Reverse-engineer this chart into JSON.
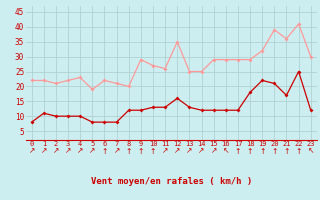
{
  "hours": [
    0,
    1,
    2,
    3,
    4,
    5,
    6,
    7,
    8,
    9,
    10,
    11,
    12,
    13,
    14,
    15,
    16,
    17,
    18,
    19,
    20,
    21,
    22,
    23
  ],
  "rafales": [
    22,
    22,
    21,
    22,
    23,
    19,
    22,
    21,
    20,
    29,
    27,
    26,
    35,
    25,
    25,
    29,
    29,
    29,
    29,
    32,
    39,
    36,
    41,
    30
  ],
  "moyen": [
    8,
    11,
    10,
    10,
    10,
    8,
    8,
    8,
    12,
    12,
    13,
    13,
    16,
    13,
    12,
    12,
    12,
    12,
    18,
    22,
    21,
    17,
    25,
    12
  ],
  "bg_color": "#cceef0",
  "line_color_rafales": "#ff9999",
  "line_color_moyen": "#cc0000",
  "grid_color": "#aacccc",
  "axis_label_color": "#cc0000",
  "tick_color": "#cc0000",
  "xlabel": "Vent moyen/en rafales ( km/h )",
  "ylim": [
    2,
    47
  ],
  "yticks": [
    5,
    10,
    15,
    20,
    25,
    30,
    35,
    40,
    45
  ],
  "arrow_symbols": [
    "↗",
    "↗",
    "↗",
    "↗",
    "↗",
    "↗",
    "↑",
    "↗",
    "↑",
    "↑",
    "↑",
    "↗",
    "↗",
    "↗",
    "↗",
    "↗",
    "↖",
    "↑",
    "↑",
    "↑",
    "↑",
    "↑",
    "↑",
    "↖"
  ]
}
